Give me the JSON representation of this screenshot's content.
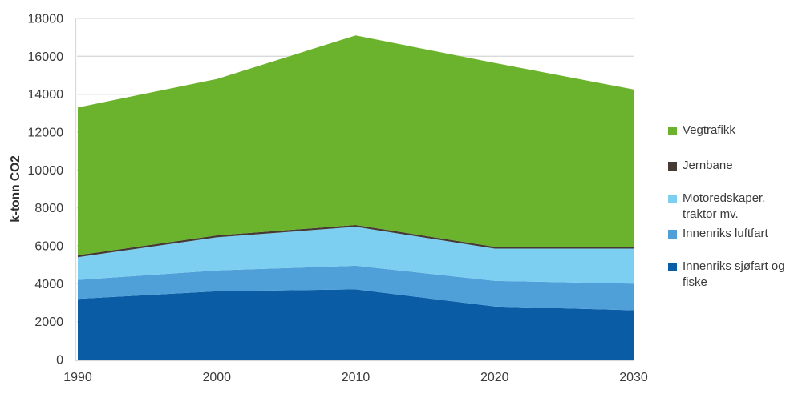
{
  "chart_data": {
    "type": "area",
    "stacked": true,
    "title": "",
    "xlabel": "",
    "ylabel": "k-tonn CO2",
    "x": [
      1990,
      2000,
      2010,
      2020,
      2030
    ],
    "x_tick_labels": [
      "1990",
      "2000",
      "2010",
      "2020",
      "2030"
    ],
    "y_ticks": [
      0,
      2000,
      4000,
      6000,
      8000,
      10000,
      12000,
      14000,
      16000,
      18000
    ],
    "xlim": [
      1990,
      2030
    ],
    "ylim": [
      0,
      18000
    ],
    "grid": true,
    "legend_position": "right",
    "series": [
      {
        "name": "Innenriks sjøfart og fiske",
        "color": "#0a5ca4",
        "values": [
          3200,
          3600,
          3700,
          2800,
          2600
        ]
      },
      {
        "name": "Innenriks luftfart",
        "color": "#4f9fd9",
        "values": [
          1000,
          1100,
          1250,
          1350,
          1400
        ]
      },
      {
        "name": "Motoredskaper, traktor mv.",
        "color": "#7dcff1",
        "values": [
          1200,
          1750,
          2050,
          1700,
          1850
        ]
      },
      {
        "name": "Jernbane",
        "color": "#453a34",
        "values": [
          100,
          100,
          100,
          100,
          100
        ]
      },
      {
        "name": "Vegtrafikk",
        "color": "#6cb32d",
        "values": [
          7800,
          8250,
          10000,
          9700,
          8300
        ]
      }
    ],
    "stack_totals": [
      13300,
      14800,
      17100,
      15650,
      14250
    ],
    "colors": {
      "gridline": "#d9d9d9",
      "axis_line": "#d9d9d9",
      "tick_text": "#3a3a3a",
      "background": "#ffffff"
    }
  }
}
